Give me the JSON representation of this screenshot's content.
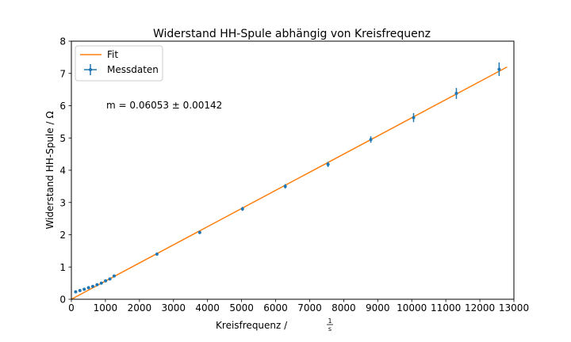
{
  "chart_data": {
    "type": "scatter",
    "title": "Widerstand HH-Spule abhängig von Kreisfrequenz",
    "xlabel": "Kreisfrequenz / ",
    "xlabel_unit_num": "1",
    "xlabel_unit_den": "s",
    "ylabel": "Widerstand HH-Spule / Ω",
    "xlim": [
      0,
      13000
    ],
    "ylim": [
      0,
      8
    ],
    "xticks": [
      0,
      1000,
      2000,
      3000,
      4000,
      5000,
      6000,
      7000,
      8000,
      9000,
      10000,
      11000,
      12000,
      13000
    ],
    "yticks": [
      0,
      1,
      2,
      3,
      4,
      5,
      6,
      7,
      8
    ],
    "grid": false,
    "legend_position": "top-left",
    "annotation": "m = 0.06053 ± 0.00142",
    "colors": {
      "data": "#1f77b4",
      "fit": "#ff7f0e"
    },
    "fit": {
      "name": "Fit",
      "x": [
        0,
        12800
      ],
      "y": [
        0.0,
        7.2
      ]
    },
    "series": [
      {
        "name": "Messdaten",
        "x": [
          126,
          251,
          377,
          503,
          628,
          754,
          880,
          1005,
          1131,
          1257,
          2513,
          3770,
          5027,
          6283,
          7540,
          8796,
          10053,
          11310,
          12566
        ],
        "y": [
          0.23,
          0.27,
          0.31,
          0.36,
          0.4,
          0.45,
          0.5,
          0.57,
          0.63,
          0.72,
          1.4,
          2.07,
          2.8,
          3.5,
          4.18,
          4.95,
          5.63,
          6.38,
          7.13
        ],
        "yerr": [
          0.02,
          0.02,
          0.02,
          0.02,
          0.02,
          0.02,
          0.02,
          0.02,
          0.02,
          0.03,
          0.04,
          0.05,
          0.06,
          0.07,
          0.08,
          0.1,
          0.14,
          0.17,
          0.21
        ]
      }
    ]
  }
}
